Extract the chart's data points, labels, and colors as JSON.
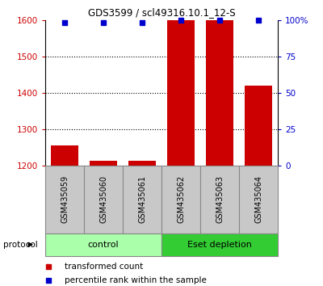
{
  "title": "GDS3599 / scl49316.10.1_12-S",
  "samples": [
    "GSM435059",
    "GSM435060",
    "GSM435061",
    "GSM435062",
    "GSM435063",
    "GSM435064"
  ],
  "red_values": [
    1255,
    1213,
    1213,
    1600,
    1600,
    1420
  ],
  "blue_values": [
    98,
    98,
    98,
    100,
    100,
    100
  ],
  "ylim_left": [
    1200,
    1600
  ],
  "ylim_right": [
    0,
    100
  ],
  "yticks_left": [
    1200,
    1300,
    1400,
    1500,
    1600
  ],
  "ytick_labels_left": [
    "1200",
    "1300",
    "1400",
    "1500",
    "1600"
  ],
  "yticks_right": [
    0,
    25,
    50,
    75,
    100
  ],
  "ytick_labels_right": [
    "0",
    "25",
    "50",
    "75",
    "100%"
  ],
  "red_color": "#cc0000",
  "blue_color": "#0000cc",
  "bar_width": 0.7,
  "protocol_groups": [
    {
      "label": "control",
      "indices": [
        0,
        1,
        2
      ],
      "color": "#aaffaa"
    },
    {
      "label": "Eset depletion",
      "indices": [
        3,
        4,
        5
      ],
      "color": "#33cc33"
    }
  ],
  "legend_red": "transformed count",
  "legend_blue": "percentile rank within the sample",
  "protocol_label": "protocol",
  "bg_color": "#ffffff",
  "grid_color": "#000000",
  "label_bg": "#c8c8c8",
  "label_border": "#888888"
}
